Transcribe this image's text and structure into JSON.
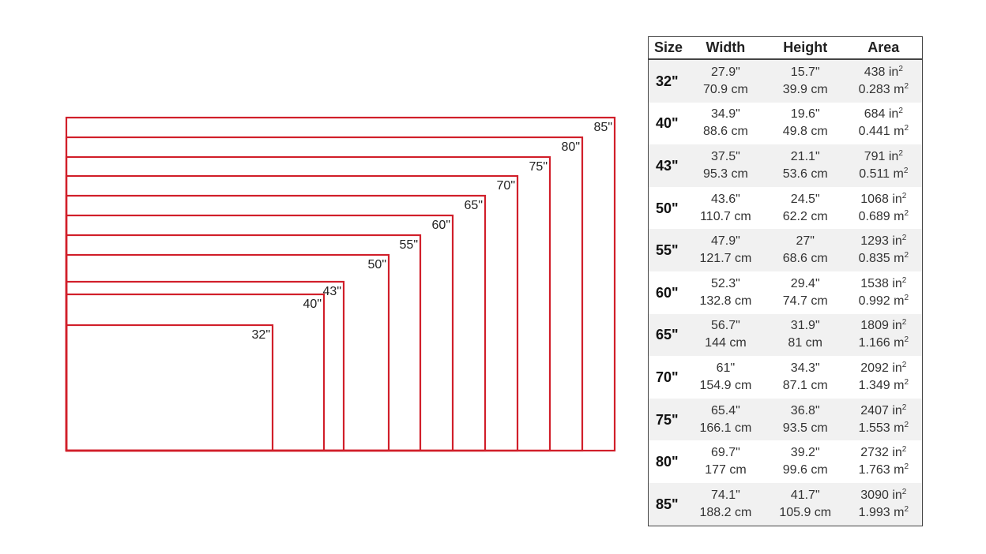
{
  "colors": {
    "outline": "#d11f2a"
  },
  "table": {
    "headers": {
      "size": "Size",
      "width": "Width",
      "height": "Height",
      "area": "Area"
    },
    "rows": [
      {
        "size": "32\"",
        "w_in": "27.9\"",
        "w_cm": "70.9 cm",
        "h_in": "15.7\"",
        "h_cm": "39.9 cm",
        "a_in": "438 in",
        "a_m": "0.283 m"
      },
      {
        "size": "40\"",
        "w_in": "34.9\"",
        "w_cm": "88.6 cm",
        "h_in": "19.6\"",
        "h_cm": "49.8 cm",
        "a_in": "684 in",
        "a_m": "0.441 m"
      },
      {
        "size": "43\"",
        "w_in": "37.5\"",
        "w_cm": "95.3 cm",
        "h_in": "21.1\"",
        "h_cm": "53.6 cm",
        "a_in": "791 in",
        "a_m": "0.511 m"
      },
      {
        "size": "50\"",
        "w_in": "43.6\"",
        "w_cm": "110.7 cm",
        "h_in": "24.5\"",
        "h_cm": "62.2 cm",
        "a_in": "1068 in",
        "a_m": "0.689 m"
      },
      {
        "size": "55\"",
        "w_in": "47.9\"",
        "w_cm": "121.7 cm",
        "h_in": "27\"",
        "h_cm": "68.6 cm",
        "a_in": "1293 in",
        "a_m": "0.835 m"
      },
      {
        "size": "60\"",
        "w_in": "52.3\"",
        "w_cm": "132.8 cm",
        "h_in": "29.4\"",
        "h_cm": "74.7 cm",
        "a_in": "1538 in",
        "a_m": "0.992 m"
      },
      {
        "size": "65\"",
        "w_in": "56.7\"",
        "w_cm": "144 cm",
        "h_in": "31.9\"",
        "h_cm": "81 cm",
        "a_in": "1809 in",
        "a_m": "1.166 m"
      },
      {
        "size": "70\"",
        "w_in": "61\"",
        "w_cm": "154.9 cm",
        "h_in": "34.3\"",
        "h_cm": "87.1 cm",
        "a_in": "2092 in",
        "a_m": "1.349 m"
      },
      {
        "size": "75\"",
        "w_in": "65.4\"",
        "w_cm": "166.1 cm",
        "h_in": "36.8\"",
        "h_cm": "93.5 cm",
        "a_in": "2407 in",
        "a_m": "1.553 m"
      },
      {
        "size": "80\"",
        "w_in": "69.7\"",
        "w_cm": "177 cm",
        "h_in": "39.2\"",
        "h_cm": "99.6 cm",
        "a_in": "2732 in",
        "a_m": "1.763 m"
      },
      {
        "size": "85\"",
        "w_in": "74.1\"",
        "w_cm": "188.2 cm",
        "h_in": "41.7\"",
        "h_cm": "105.9 cm",
        "a_in": "3090 in",
        "a_m": "1.993 m"
      }
    ],
    "sup": "2"
  },
  "diagram": {
    "labels": [
      "32\"",
      "40\"",
      "43\"",
      "50\"",
      "55\"",
      "60\"",
      "65\"",
      "70\"",
      "75\"",
      "80\"",
      "85\""
    ]
  }
}
